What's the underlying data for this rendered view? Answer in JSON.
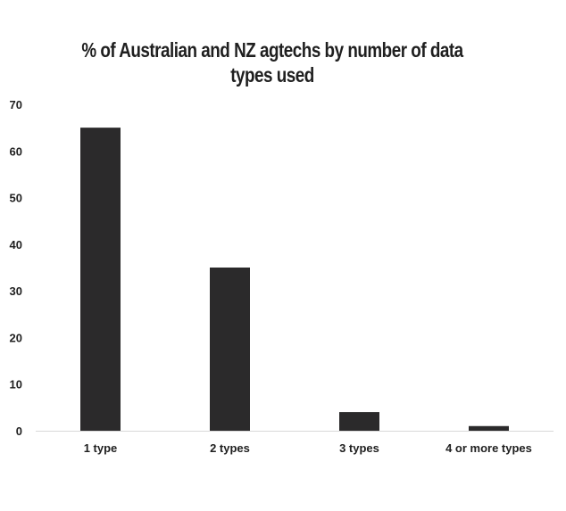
{
  "chart_data": {
    "type": "bar",
    "title": "% of Australian and NZ agtechs by number of data types used",
    "xlabel": "",
    "ylabel": "",
    "categories": [
      "1 type",
      "2 types",
      "3 types",
      "4 or more types"
    ],
    "values": [
      65,
      35,
      4,
      1
    ],
    "ylim": [
      0,
      70
    ],
    "yticks": [
      "0",
      "10",
      "20",
      "30",
      "40",
      "50",
      "60",
      "70"
    ],
    "grid": false,
    "legend": "none",
    "colors": {
      "bar": "#2b2a2b",
      "axis": "#d9d9d9",
      "text": "#1f1f1f"
    }
  }
}
